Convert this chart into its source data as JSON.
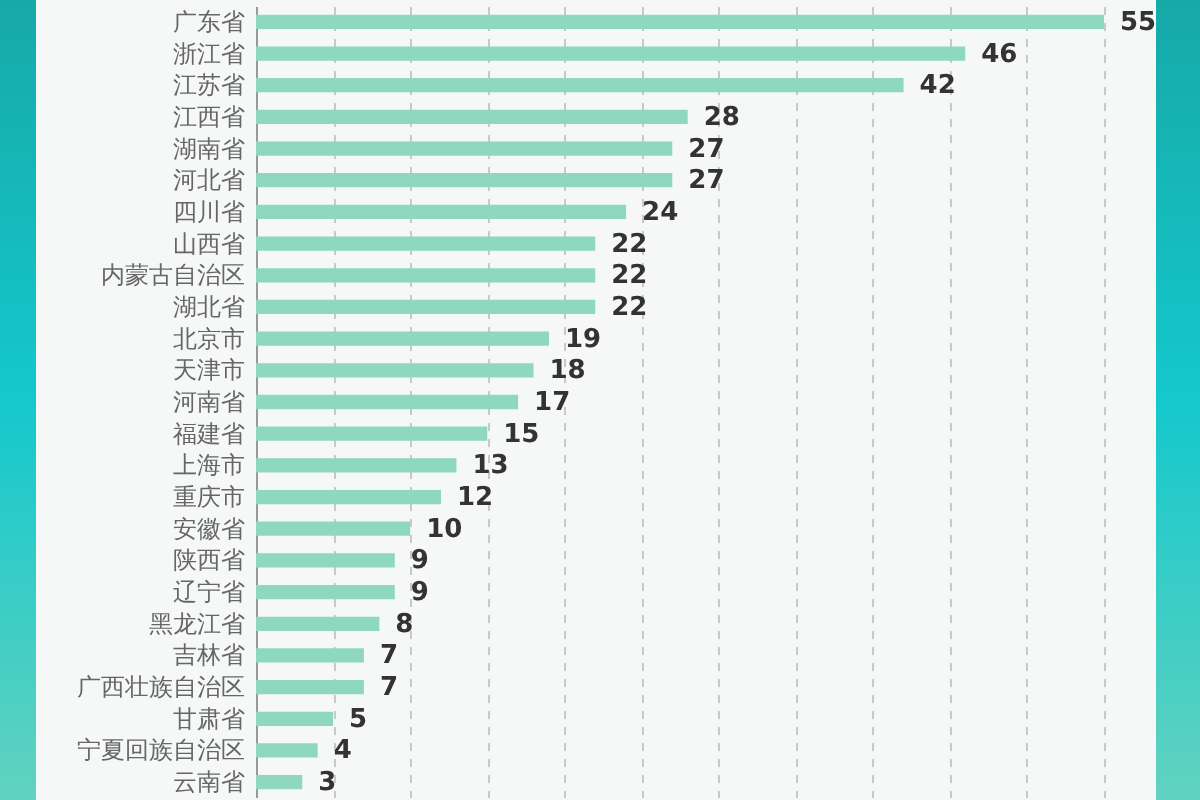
{
  "chart_data": {
    "type": "bar",
    "orientation": "horizontal",
    "categories": [
      "广东省",
      "浙江省",
      "江苏省",
      "江西省",
      "湖南省",
      "河北省",
      "四川省",
      "山西省",
      "内蒙古自治区",
      "湖北省",
      "北京市",
      "天津市",
      "河南省",
      "福建省",
      "上海市",
      "重庆市",
      "安徽省",
      "陕西省",
      "辽宁省",
      "黑龙江省",
      "吉林省",
      "广西壮族自治区",
      "甘肃省",
      "宁夏回族自治区",
      "云南省"
    ],
    "values": [
      55,
      46,
      42,
      28,
      27,
      27,
      24,
      22,
      22,
      22,
      19,
      18,
      17,
      15,
      13,
      12,
      10,
      9,
      9,
      8,
      7,
      7,
      5,
      4,
      3
    ],
    "color": "#8ed8c0",
    "data_labels": true,
    "grid": "x",
    "tick_labels": "y"
  }
}
